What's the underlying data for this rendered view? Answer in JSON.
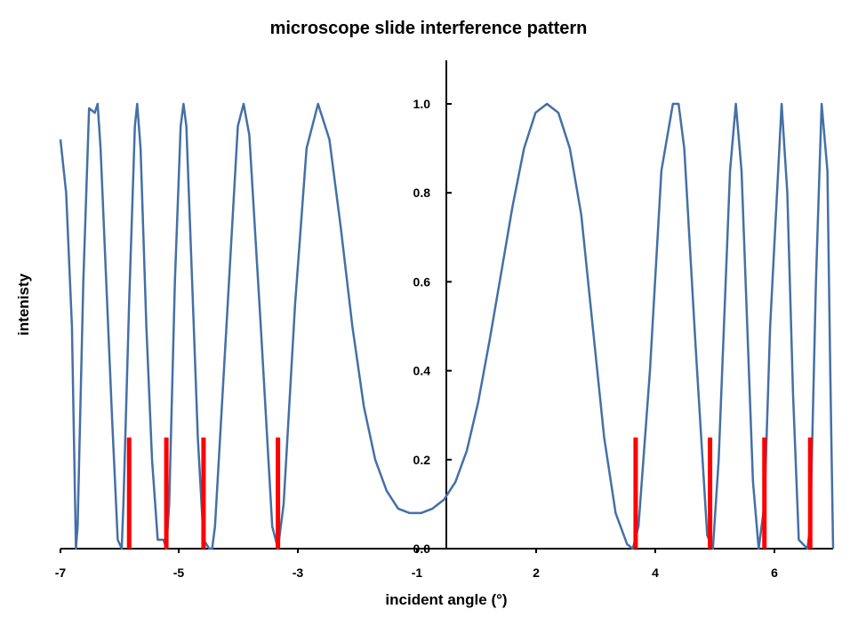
{
  "chart_data": {
    "type": "line",
    "title": "microscope slide interference pattern",
    "xlabel": "incident angle  (°)",
    "ylabel": "intenisty",
    "xlim": [
      -7,
      6.5
    ],
    "ylim": [
      0,
      1.1
    ],
    "x_ticks": [
      "-7",
      "-5",
      "-3",
      "-1",
      "2",
      "4",
      "6"
    ],
    "y_ticks": [
      "0.0",
      "0.2",
      "0.4",
      "0.6",
      "0.8",
      "1.0"
    ],
    "grid": false,
    "colors": {
      "curve": "#4470a6",
      "markers": "#ff0000"
    },
    "series": [
      {
        "x": [
          -7.0,
          -6.9,
          -6.8,
          -6.73,
          -6.7,
          -6.6,
          -6.5,
          -6.4,
          -6.35,
          -6.3,
          -6.2,
          -6.1,
          -6.0,
          -5.93,
          -5.9,
          -5.8,
          -5.7,
          -5.66,
          -5.6,
          -5.5,
          -5.4,
          -5.3,
          -5.2,
          -5.15,
          -5.1,
          -5.0,
          -4.9,
          -4.85,
          -4.8,
          -4.7,
          -4.6,
          -4.5,
          -4.4,
          -4.35,
          -4.3,
          -4.1,
          -3.9,
          -3.8,
          -3.7,
          -3.5,
          -3.3,
          -3.2,
          -3.1,
          -2.9,
          -2.7,
          -2.5,
          -2.3,
          -2.1,
          -1.9,
          -1.7,
          -1.5,
          -1.3,
          -1.1,
          -0.9,
          -0.7,
          -0.5,
          -0.3,
          -0.1,
          0.1,
          0.3,
          0.5,
          0.7,
          0.9,
          1.1,
          1.3,
          1.5,
          1.7,
          1.9,
          2.1,
          2.3,
          2.5,
          2.7,
          2.9,
          3.0,
          3.1,
          3.3,
          3.5,
          3.7,
          3.8,
          3.9,
          4.1,
          4.3,
          4.4,
          4.5,
          4.7,
          4.8,
          4.9,
          5.1,
          5.2,
          5.3,
          5.4,
          5.6,
          5.7,
          5.8,
          5.9,
          6.05,
          6.1,
          6.2,
          6.3,
          6.4,
          6.45,
          6.5
        ],
        "y": [
          0.92,
          0.8,
          0.5,
          0.0,
          0.05,
          0.6,
          0.99,
          0.98,
          1.0,
          0.9,
          0.6,
          0.3,
          0.02,
          0.0,
          0.1,
          0.55,
          0.95,
          1.0,
          0.9,
          0.5,
          0.2,
          0.02,
          0.02,
          0.0,
          0.1,
          0.6,
          0.95,
          1.0,
          0.95,
          0.6,
          0.25,
          0.02,
          0.0,
          0.0,
          0.05,
          0.5,
          0.95,
          1.0,
          0.93,
          0.5,
          0.05,
          0.0,
          0.1,
          0.55,
          0.9,
          1.0,
          0.92,
          0.72,
          0.5,
          0.32,
          0.2,
          0.13,
          0.09,
          0.08,
          0.08,
          0.09,
          0.11,
          0.15,
          0.22,
          0.33,
          0.47,
          0.62,
          0.77,
          0.9,
          0.98,
          1.0,
          0.98,
          0.9,
          0.75,
          0.5,
          0.25,
          0.08,
          0.01,
          0.0,
          0.05,
          0.4,
          0.85,
          1.0,
          1.0,
          0.9,
          0.45,
          0.03,
          0.0,
          0.2,
          0.85,
          1.0,
          0.85,
          0.15,
          0.0,
          0.1,
          0.5,
          1.0,
          0.8,
          0.35,
          0.02,
          0.0,
          0.05,
          0.6,
          1.0,
          0.85,
          0.4,
          0.0
        ]
      }
    ],
    "markers": [
      {
        "x": -5.8,
        "y": 0.25
      },
      {
        "x": -5.15,
        "y": 0.25
      },
      {
        "x": -4.5,
        "y": 0.25
      },
      {
        "x": -3.2,
        "y": 0.25
      },
      {
        "x": 3.05,
        "y": 0.25
      },
      {
        "x": 4.35,
        "y": 0.25
      },
      {
        "x": 5.3,
        "y": 0.25
      },
      {
        "x": 6.1,
        "y": 0.25
      }
    ]
  }
}
